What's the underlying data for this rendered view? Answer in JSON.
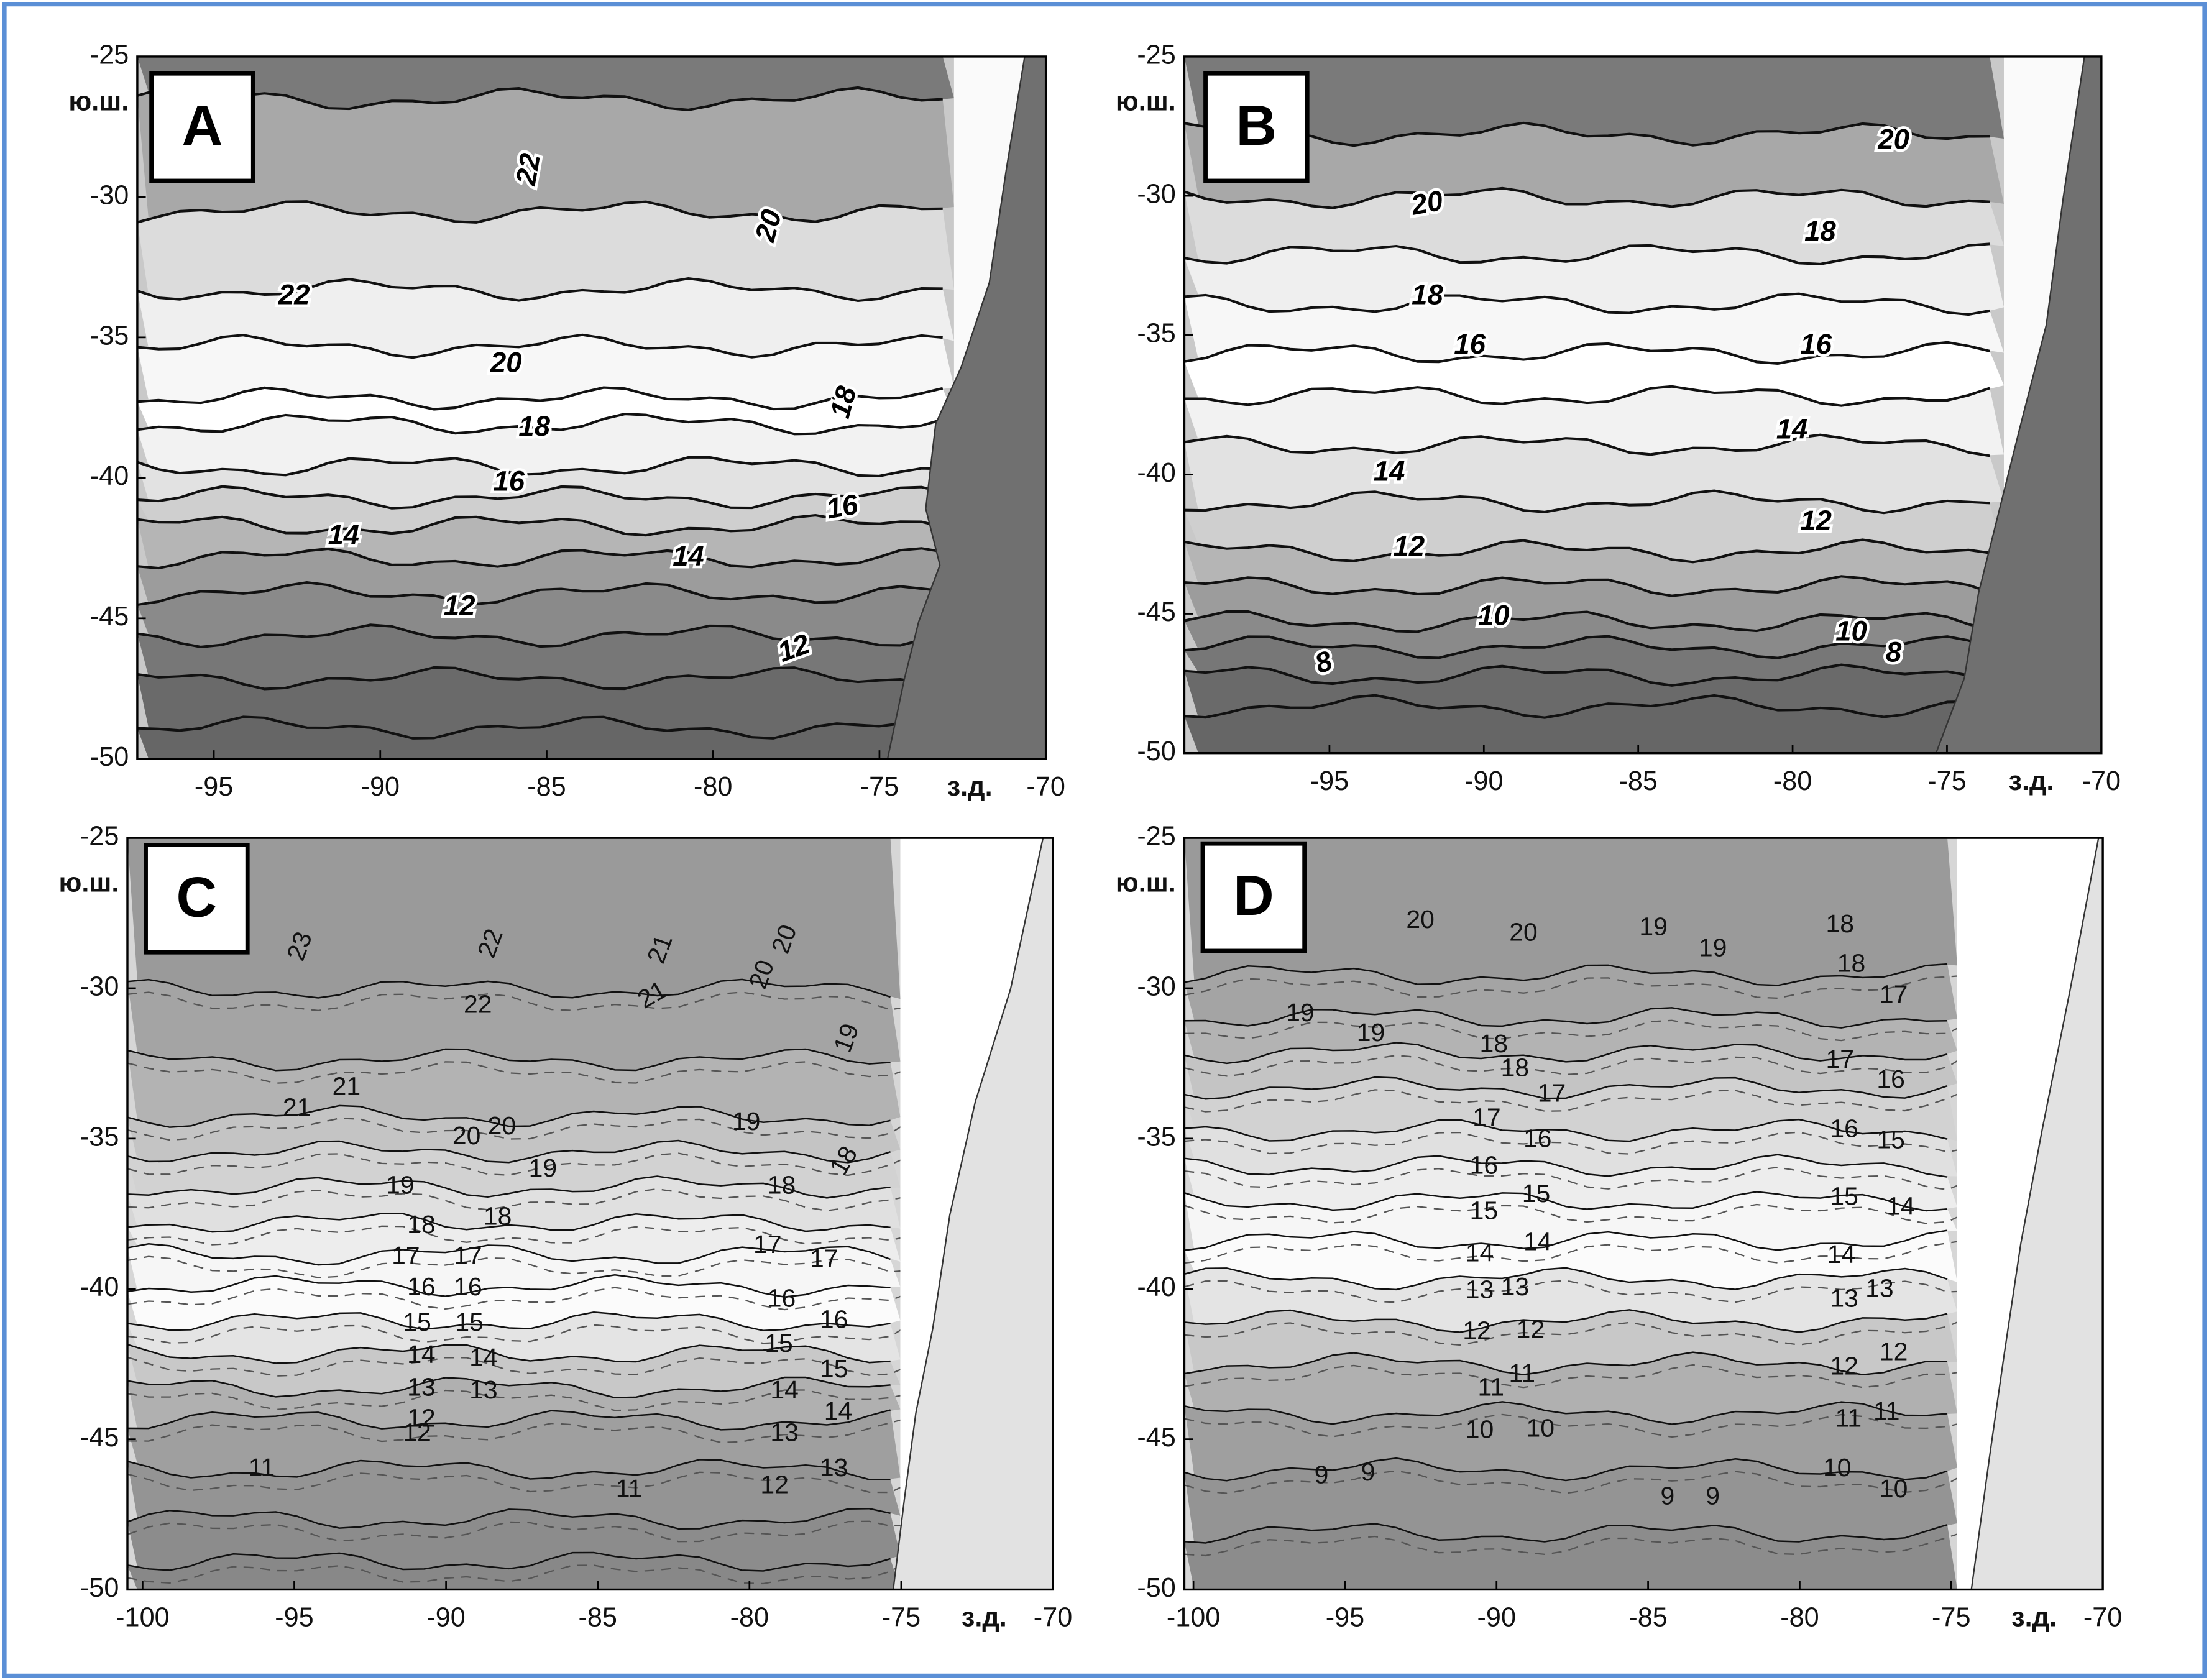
{
  "panels": [
    {
      "label": "A",
      "xlim": [
        -97.3,
        -70
      ],
      "ylim": [
        -50,
        -25
      ],
      "xticks": [
        -95,
        -90,
        -85,
        -80,
        -75,
        -70
      ],
      "yticks": [
        -25,
        -30,
        -35,
        -40,
        -45,
        -50
      ],
      "lat_label": "ю.ш.",
      "lon_label": "з.д.",
      "contour_labels": [
        22,
        20,
        22,
        20,
        18,
        18,
        16,
        16,
        14,
        14,
        12,
        12
      ]
    },
    {
      "label": "B",
      "xlim": [
        -99.7,
        -70
      ],
      "ylim": [
        -50,
        -25
      ],
      "xticks": [
        -95,
        -90,
        -85,
        -80,
        -75,
        -70
      ],
      "yticks": [
        -25,
        -30,
        -35,
        -40,
        -45,
        -50
      ],
      "lat_label": "ю.ш.",
      "lon_label": "з.д.",
      "contour_labels": [
        20,
        20,
        18,
        18,
        16,
        16,
        14,
        14,
        12,
        12,
        10,
        10,
        8,
        8
      ]
    },
    {
      "label": "C",
      "xlim": [
        -100.5,
        -70
      ],
      "ylim": [
        -50,
        -25
      ],
      "xticks": [
        -100,
        -95,
        -90,
        -85,
        -80,
        -75,
        -70
      ],
      "yticks": [
        -25,
        -30,
        -35,
        -40,
        -45,
        -50
      ],
      "lat_label": "ю.ш.",
      "lon_label": "з.д.",
      "contour_labels": [
        23,
        22,
        22,
        21,
        21,
        20,
        20,
        21,
        21,
        20,
        20,
        19,
        19,
        18,
        19,
        19,
        18,
        18,
        18,
        17,
        17,
        17,
        17,
        16,
        16,
        16,
        16,
        15,
        15,
        15,
        15,
        14,
        14,
        14,
        14,
        13,
        13,
        13,
        13,
        12,
        12,
        11,
        11,
        12
      ]
    },
    {
      "label": "D",
      "xlim": [
        -100.3,
        -70
      ],
      "ylim": [
        -50,
        -25
      ],
      "xticks": [
        -100,
        -95,
        -90,
        -85,
        -80,
        -75,
        -70
      ],
      "yticks": [
        -25,
        -30,
        -35,
        -40,
        -45,
        -50
      ],
      "lat_label": "ю.ш.",
      "lon_label": "з.д.",
      "contour_labels": [
        20,
        20,
        19,
        19,
        18,
        18,
        17,
        19,
        19,
        18,
        18,
        17,
        17,
        16,
        17,
        16,
        16,
        15,
        16,
        15,
        15,
        14,
        15,
        14,
        14,
        14,
        13,
        13,
        13,
        13,
        12,
        12,
        12,
        12,
        11,
        11,
        11,
        11,
        10,
        10,
        10,
        10,
        9,
        9,
        9,
        9
      ]
    }
  ]
}
